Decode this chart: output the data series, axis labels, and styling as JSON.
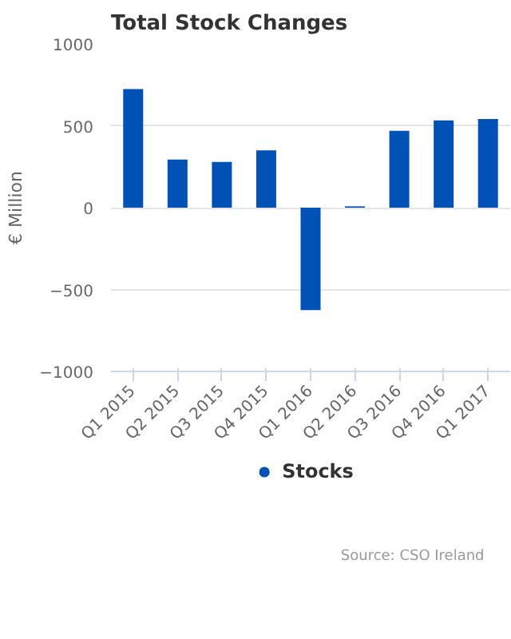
{
  "chart_data": {
    "type": "bar",
    "title": "Total Stock Changes",
    "ylabel": "€ Million",
    "categories": [
      "Q1 2015",
      "Q2 2015",
      "Q3 2015",
      "Q4 2015",
      "Q1 2016",
      "Q2 2016",
      "Q3 2016",
      "Q4 2016",
      "Q1 2017"
    ],
    "series": [
      {
        "name": "Stocks",
        "color": "#0051b5",
        "values": [
          724,
          294,
          279,
          350,
          -626,
          8,
          469,
          533,
          541
        ]
      }
    ],
    "ylim": [
      -1000,
      1000
    ],
    "yticks": [
      -1000,
      -500,
      0,
      500,
      1000
    ],
    "grid": "y",
    "legend": "bottom",
    "annotations": [
      "Source: CSO Ireland"
    ]
  }
}
